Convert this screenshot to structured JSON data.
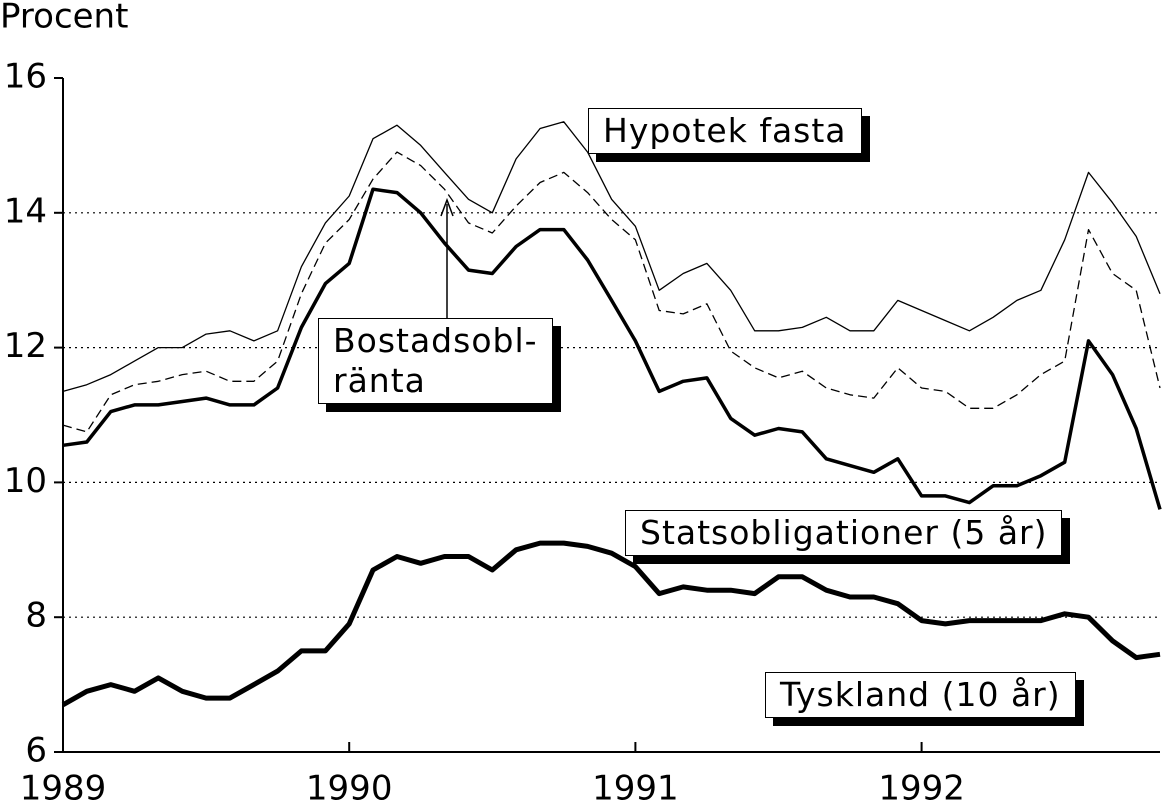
{
  "chart_data": {
    "type": "line",
    "y_axis_label": "Procent",
    "x": [
      1989,
      1989.083,
      1989.167,
      1989.25,
      1989.333,
      1989.417,
      1989.5,
      1989.583,
      1989.667,
      1989.75,
      1989.833,
      1989.917,
      1990,
      1990.083,
      1990.167,
      1990.25,
      1990.333,
      1990.417,
      1990.5,
      1990.583,
      1990.667,
      1990.75,
      1990.833,
      1990.917,
      1991,
      1991.083,
      1991.167,
      1991.25,
      1991.333,
      1991.417,
      1991.5,
      1991.583,
      1991.667,
      1991.75,
      1991.833,
      1991.917,
      1992,
      1992.083,
      1992.167,
      1992.25,
      1992.333,
      1992.417,
      1992.5,
      1992.583,
      1992.667,
      1992.75,
      1992.833
    ],
    "series": [
      {
        "name": "Hypotek fasta",
        "color": "#000000",
        "line_width": 1.3,
        "dashed": false,
        "values": [
          11.35,
          11.45,
          11.6,
          11.8,
          12.0,
          12.0,
          12.2,
          12.25,
          12.1,
          12.25,
          13.2,
          13.85,
          14.25,
          15.1,
          15.3,
          15.0,
          14.6,
          14.2,
          14.0,
          14.8,
          15.25,
          15.35,
          14.9,
          14.2,
          13.8,
          12.85,
          13.1,
          13.25,
          12.85,
          12.25,
          12.25,
          12.3,
          12.45,
          12.25,
          12.25,
          12.7,
          12.55,
          12.4,
          12.25,
          12.45,
          12.7,
          12.85,
          13.6,
          14.6,
          14.15,
          13.65,
          12.8
        ]
      },
      {
        "name": "Bostadsobl-\nränta",
        "color": "#000000",
        "line_width": 1.3,
        "dashed": true,
        "values": [
          10.85,
          10.75,
          11.3,
          11.45,
          11.5,
          11.6,
          11.65,
          11.5,
          11.5,
          11.8,
          12.8,
          13.55,
          13.9,
          14.5,
          14.9,
          14.7,
          14.35,
          13.85,
          13.7,
          14.1,
          14.45,
          14.6,
          14.3,
          13.9,
          13.6,
          12.55,
          12.5,
          12.65,
          11.95,
          11.7,
          11.55,
          11.65,
          11.4,
          11.3,
          11.25,
          11.7,
          11.4,
          11.35,
          11.1,
          11.1,
          11.3,
          11.6,
          11.8,
          13.75,
          13.1,
          12.85,
          11.4
        ]
      },
      {
        "name": "Statsobligationer (5 år)",
        "color": "#000000",
        "line_width": 3.5,
        "dashed": false,
        "values": [
          10.55,
          10.6,
          11.05,
          11.15,
          11.15,
          11.2,
          11.25,
          11.15,
          11.15,
          11.4,
          12.3,
          12.95,
          13.25,
          14.35,
          14.3,
          14.0,
          13.55,
          13.15,
          13.1,
          13.5,
          13.75,
          13.75,
          13.3,
          12.7,
          12.1,
          11.35,
          11.5,
          11.55,
          10.95,
          10.7,
          10.8,
          10.75,
          10.35,
          10.25,
          10.15,
          10.35,
          9.8,
          9.8,
          9.7,
          9.95,
          9.95,
          10.1,
          10.3,
          12.1,
          11.6,
          10.8,
          9.6
        ]
      },
      {
        "name": "Tyskland (10 år)",
        "color": "#000000",
        "line_width": 5,
        "dashed": false,
        "values": [
          6.7,
          6.9,
          7.0,
          6.9,
          7.1,
          6.9,
          6.8,
          6.8,
          7.0,
          7.2,
          7.5,
          7.5,
          7.9,
          8.7,
          8.9,
          8.8,
          8.9,
          8.9,
          8.7,
          9.0,
          9.1,
          9.1,
          9.05,
          8.95,
          8.75,
          8.35,
          8.45,
          8.4,
          8.4,
          8.35,
          8.6,
          8.6,
          8.4,
          8.3,
          8.3,
          8.2,
          7.95,
          7.9,
          7.95,
          7.95,
          7.95,
          7.95,
          8.05,
          8.0,
          7.65,
          7.4,
          7.45
        ]
      }
    ],
    "xlim": [
      1989,
      1992.833
    ],
    "xticks": [
      1989,
      1990,
      1991,
      1992
    ],
    "ylim": [
      6,
      16
    ],
    "yticks": [
      6,
      8,
      10,
      12,
      14,
      16
    ],
    "grid": true,
    "grid_style": "dotted"
  }
}
